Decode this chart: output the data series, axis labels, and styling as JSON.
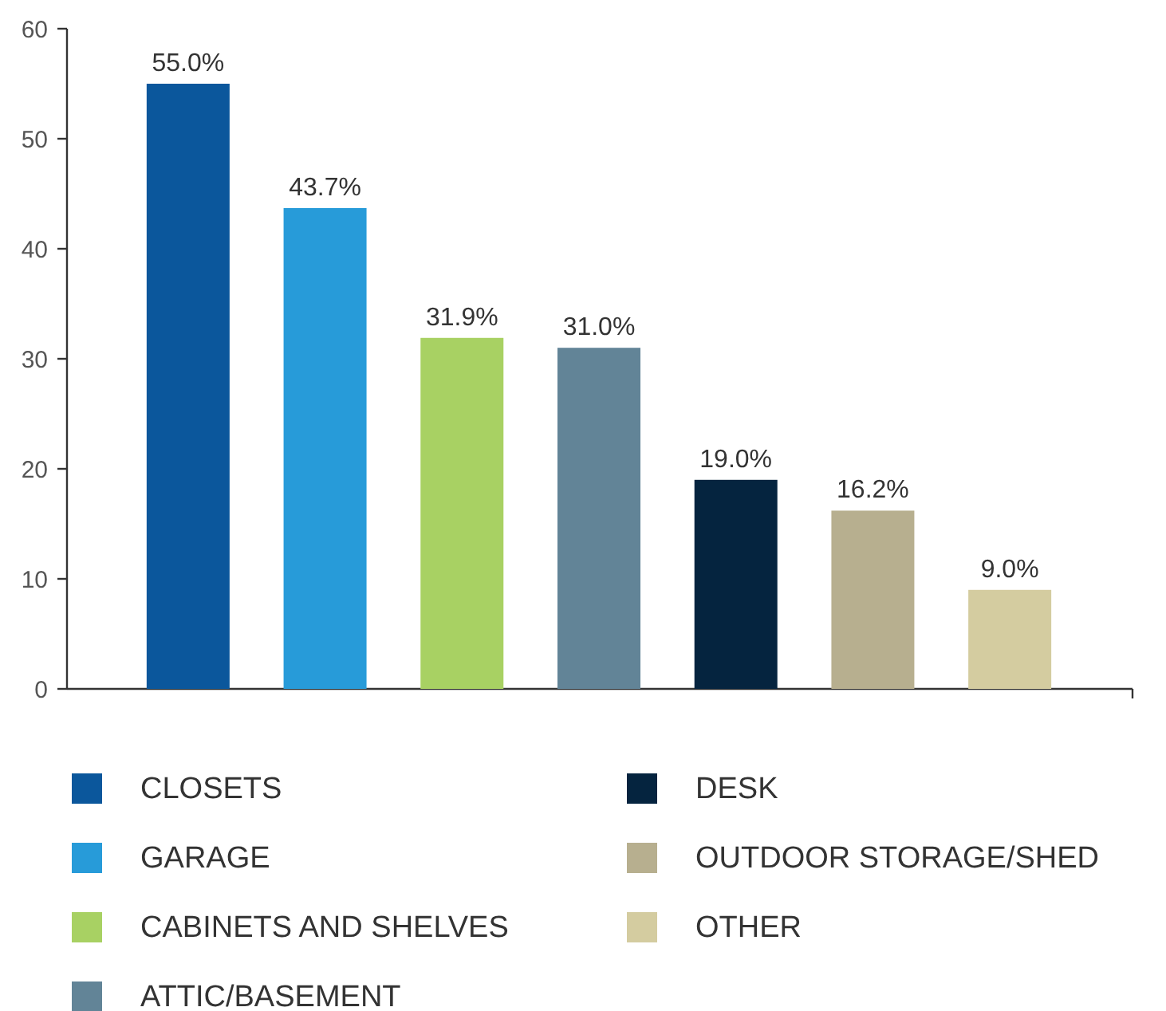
{
  "chart_data": {
    "type": "bar",
    "stacked": true,
    "categories": [
      null,
      null,
      null,
      null,
      null,
      null,
      null
    ],
    "series": [
      {
        "name": "CLOSETS",
        "color": "#0b579c",
        "values": [
          55.0,
          null,
          null,
          null,
          null,
          null,
          null
        ],
        "value_labels": [
          "55.0%",
          null,
          null,
          null,
          null,
          null,
          null
        ]
      },
      {
        "name": "GARAGE",
        "color": "#279bd9",
        "values": [
          null,
          43.7,
          null,
          null,
          null,
          null,
          null
        ],
        "value_labels": [
          null,
          "43.7%",
          null,
          null,
          null,
          null,
          null
        ]
      },
      {
        "name": "CABINETS AND SHELVES",
        "color": "#a8d163",
        "values": [
          null,
          null,
          31.9,
          null,
          null,
          null,
          null
        ],
        "value_labels": [
          null,
          null,
          "31.9%",
          null,
          null,
          null,
          null
        ]
      },
      {
        "name": "ATTIC/BASEMENT",
        "color": "#628497",
        "values": [
          null,
          null,
          null,
          31.0,
          null,
          null,
          null
        ],
        "value_labels": [
          null,
          null,
          null,
          "31.0%",
          null,
          null,
          null
        ]
      },
      {
        "name": "DESK",
        "color": "#05243f",
        "values": [
          null,
          null,
          null,
          null,
          19.0,
          null,
          null
        ],
        "value_labels": [
          null,
          null,
          null,
          null,
          "19.0%",
          null,
          null
        ]
      },
      {
        "name": "OUTDOOR STORAGE/SHED",
        "color": "#b7af8f",
        "values": [
          null,
          null,
          null,
          null,
          null,
          16.2,
          null
        ],
        "value_labels": [
          null,
          null,
          null,
          null,
          null,
          "16.2%",
          null
        ]
      },
      {
        "name": "OTHER",
        "color": "#d4cca0",
        "values": [
          null,
          null,
          null,
          null,
          null,
          null,
          9.0
        ],
        "value_labels": [
          null,
          null,
          null,
          null,
          null,
          null,
          "9.0%"
        ]
      }
    ],
    "ylim": [
      0,
      60
    ],
    "yticks": [
      0,
      10,
      20,
      30,
      40,
      50,
      60
    ],
    "tick_labels": "y",
    "legend": "bottom",
    "grid": false
  }
}
